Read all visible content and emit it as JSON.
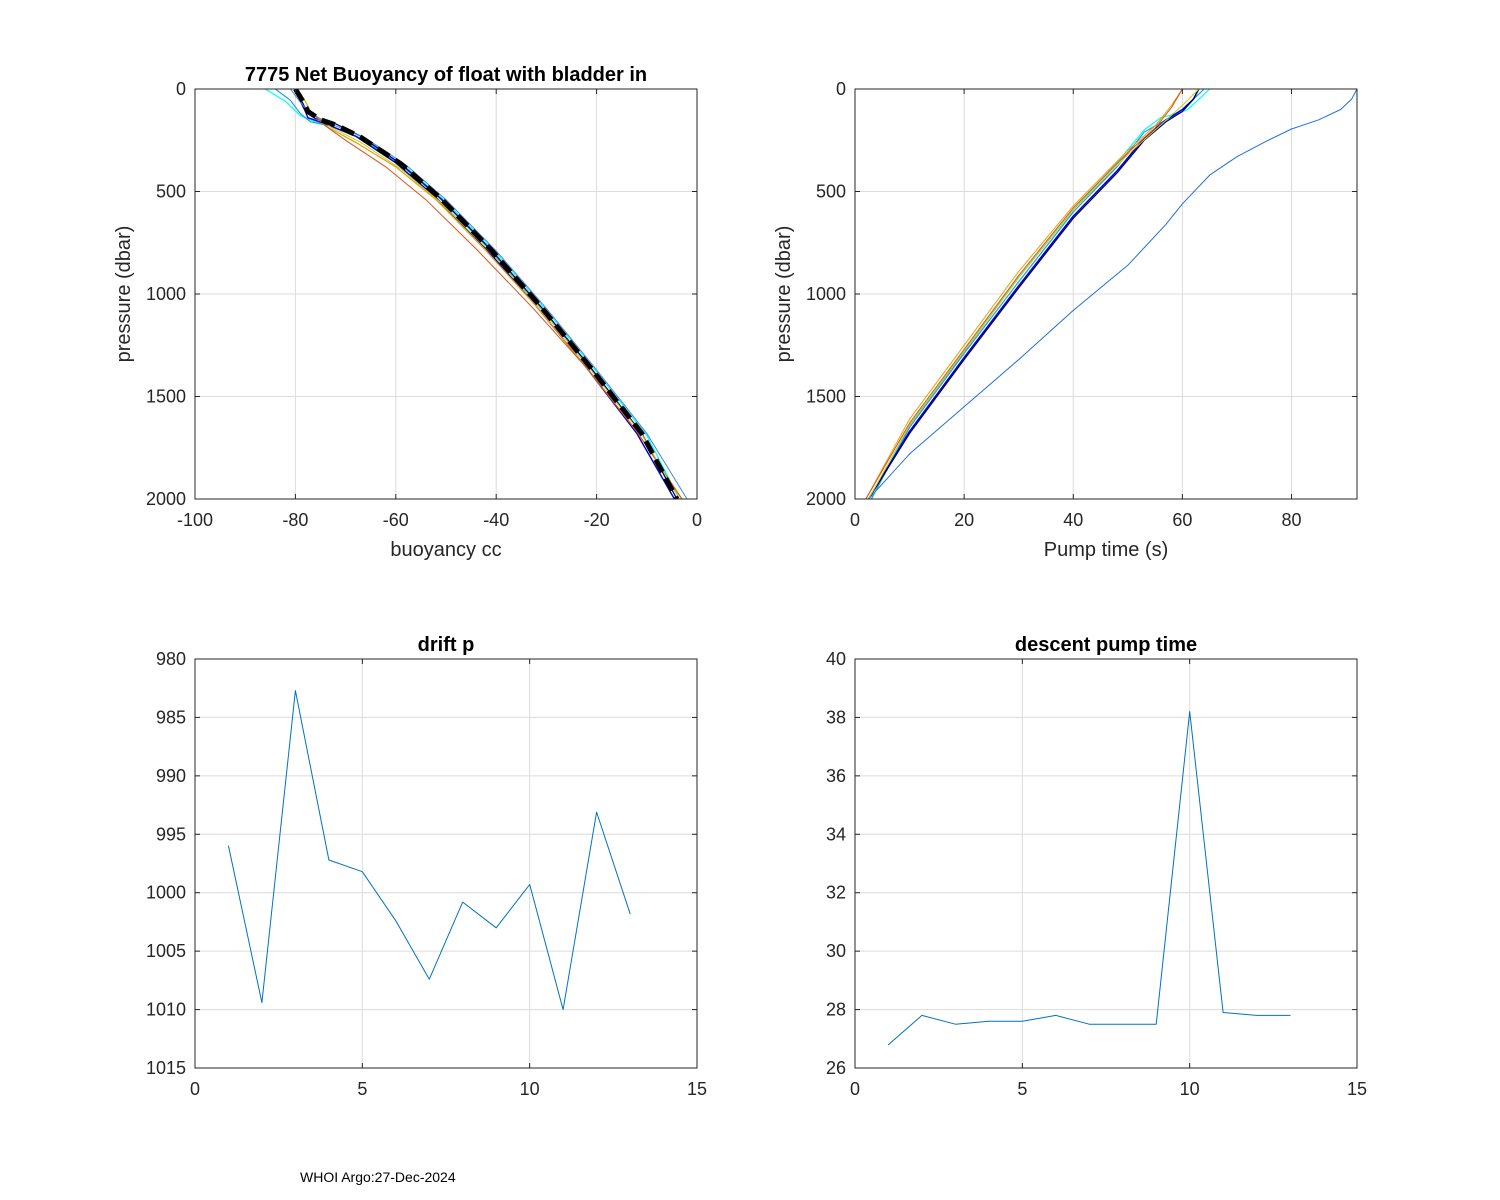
{
  "footer": "WHOI Argo:27-Dec-2024",
  "chart_data": [
    {
      "type": "line",
      "title": "7775 Net Buoyancy of float with bladder in",
      "xlabel": "buoyancy cc",
      "ylabel": "pressure (dbar)",
      "xlim": [
        -100,
        0
      ],
      "ylim": [
        0,
        2000
      ],
      "y_reversed": true,
      "xticks": [
        -100,
        -80,
        -60,
        -40,
        -20,
        0
      ],
      "yticks": [
        0,
        500,
        1000,
        1500,
        2000
      ],
      "grid": true,
      "series": [
        {
          "name": "profile 1",
          "color": "#00ffff",
          "width": 1.2,
          "x": [
            -86,
            -82,
            -79,
            -76,
            -72,
            -66,
            -58,
            -50,
            -40,
            -30,
            -20,
            -10,
            -3.5
          ],
          "y": [
            0,
            60,
            130,
            160,
            190,
            250,
            380,
            550,
            800,
            1080,
            1380,
            1690,
            2000
          ]
        },
        {
          "name": "profile 2",
          "color": "#1f9be6",
          "width": 1.2,
          "x": [
            -84,
            -81,
            -79,
            -77,
            -73,
            -67,
            -59,
            -51,
            -41,
            -31,
            -21,
            -11,
            -4
          ],
          "y": [
            0,
            55,
            120,
            160,
            180,
            240,
            370,
            540,
            790,
            1070,
            1370,
            1680,
            2000
          ]
        },
        {
          "name": "profile 3",
          "color": "#0000d0",
          "width": 1.4,
          "x": [
            -80,
            -79,
            -78,
            -77.5,
            -74,
            -68,
            -60,
            -52,
            -42,
            -32,
            -22,
            -12,
            -4.5
          ],
          "y": [
            0,
            60,
            110,
            140,
            170,
            230,
            360,
            530,
            780,
            1060,
            1360,
            1680,
            2000
          ]
        },
        {
          "name": "profile 4",
          "color": "#000060",
          "width": 1.2,
          "x": [
            -80,
            -78.5,
            -77.5,
            -76,
            -72,
            -67,
            -59,
            -51,
            -41,
            -31,
            -21,
            -11,
            -4
          ],
          "y": [
            0,
            70,
            120,
            145,
            170,
            230,
            365,
            535,
            785,
            1065,
            1365,
            1680,
            2000
          ]
        },
        {
          "name": "profile 5",
          "color": "#e8a000",
          "width": 1.2,
          "x": [
            -80,
            -78,
            -77,
            -74,
            -68,
            -60,
            -52,
            -42,
            -32,
            -22,
            -12,
            -3
          ],
          "y": [
            0,
            60,
            110,
            180,
            260,
            380,
            540,
            790,
            1060,
            1360,
            1670,
            2000
          ]
        },
        {
          "name": "profile 6",
          "color": "#d95319",
          "width": 1.0,
          "x": [
            -80,
            -78,
            -77,
            -74,
            -70,
            -62,
            -54,
            -44,
            -33,
            -22,
            -12,
            -3
          ],
          "y": [
            0,
            60,
            110,
            180,
            250,
            380,
            540,
            780,
            1060,
            1360,
            1670,
            2000
          ]
        },
        {
          "name": "profile 7",
          "color": "#c0d020",
          "width": 1.0,
          "x": [
            -80,
            -78,
            -77,
            -73,
            -67,
            -59,
            -51,
            -41,
            -31,
            -21,
            -11,
            -3.5
          ],
          "y": [
            0,
            60,
            110,
            185,
            260,
            390,
            555,
            800,
            1075,
            1375,
            1685,
            2000
          ]
        },
        {
          "name": "profile 8",
          "color": "#4b83d6",
          "width": 1.0,
          "x": [
            -81,
            -79,
            -77,
            -73,
            -66,
            -58,
            -50,
            -40,
            -30,
            -20,
            -10,
            -2
          ],
          "y": [
            0,
            65,
            120,
            170,
            240,
            370,
            540,
            790,
            1070,
            1370,
            1680,
            2000
          ]
        },
        {
          "name": "mean",
          "color": "#000000",
          "width": 5,
          "dashed": true,
          "x": [
            -80,
            -78.5,
            -77.5,
            -75,
            -72,
            -67,
            -59,
            -51,
            -41,
            -31,
            -21,
            -11,
            -4
          ],
          "y": [
            0,
            60,
            110,
            150,
            175,
            235,
            365,
            535,
            785,
            1065,
            1365,
            1680,
            2000
          ]
        }
      ]
    },
    {
      "type": "line",
      "title": "",
      "xlabel": "Pump time (s)",
      "ylabel": "pressure (dbar)",
      "xlim": [
        0,
        92
      ],
      "ylim": [
        0,
        2000
      ],
      "y_reversed": true,
      "xticks": [
        0,
        20,
        40,
        60,
        80
      ],
      "yticks": [
        0,
        500,
        1000,
        1500,
        2000
      ],
      "grid": true,
      "series": [
        {
          "name": "outlier",
          "color": "#1f6fe0",
          "width": 1.0,
          "x": [
            2.5,
            10,
            20,
            30,
            40,
            50,
            57,
            60,
            65,
            70,
            75,
            80,
            85,
            89,
            91,
            92
          ],
          "y": [
            2000,
            1780,
            1550,
            1320,
            1080,
            860,
            660,
            560,
            420,
            330,
            260,
            195,
            150,
            100,
            50,
            0
          ]
        },
        {
          "name": "profile 1",
          "color": "#00ffff",
          "width": 1.2,
          "x": [
            3,
            10,
            20,
            30,
            40,
            48,
            53,
            56,
            59,
            61,
            63,
            65
          ],
          "y": [
            2000,
            1640,
            1280,
            920,
            590,
            360,
            200,
            140,
            120,
            100,
            50,
            0
          ]
        },
        {
          "name": "profile 2",
          "color": "#1f9be6",
          "width": 1.2,
          "x": [
            3,
            10,
            20,
            30,
            40,
            48,
            53,
            57,
            60,
            62,
            64
          ],
          "y": [
            2000,
            1650,
            1290,
            940,
            600,
            380,
            210,
            150,
            110,
            50,
            0
          ]
        },
        {
          "name": "profile 3",
          "color": "#0000d0",
          "width": 1.5,
          "x": [
            2.5,
            10,
            20,
            30,
            40,
            48,
            53,
            57,
            60,
            62,
            63
          ],
          "y": [
            2000,
            1670,
            1310,
            960,
            620,
            400,
            240,
            150,
            100,
            50,
            0
          ]
        },
        {
          "name": "profile 4",
          "color": "#000060",
          "width": 1.2,
          "x": [
            2.5,
            10,
            20,
            30,
            40,
            48,
            53,
            57,
            60,
            62,
            63
          ],
          "y": [
            2000,
            1680,
            1320,
            970,
            630,
            410,
            250,
            160,
            110,
            50,
            0
          ]
        },
        {
          "name": "profile 5",
          "color": "#e8a000",
          "width": 1.0,
          "x": [
            2,
            10,
            20,
            30,
            40,
            50,
            55,
            58,
            60
          ],
          "y": [
            2000,
            1610,
            1250,
            890,
            570,
            300,
            180,
            80,
            0
          ]
        },
        {
          "name": "profile 6",
          "color": "#d95319",
          "width": 1.0,
          "x": [
            2,
            10,
            20,
            30,
            40,
            50,
            55,
            58,
            60
          ],
          "y": [
            2000,
            1630,
            1270,
            910,
            580,
            310,
            190,
            90,
            0
          ]
        },
        {
          "name": "profile 7",
          "color": "#c0d020",
          "width": 1.0,
          "x": [
            2.5,
            10,
            20,
            30,
            40,
            50,
            55,
            60,
            63
          ],
          "y": [
            2000,
            1640,
            1280,
            920,
            590,
            320,
            200,
            80,
            0
          ]
        }
      ]
    },
    {
      "type": "line",
      "title": "drift p",
      "xlabel": "",
      "ylabel": "",
      "xlim": [
        0,
        15
      ],
      "ylim": [
        980,
        1015
      ],
      "y_reversed": true,
      "xticks": [
        0,
        5,
        10,
        15
      ],
      "yticks": [
        980,
        985,
        990,
        995,
        1000,
        1005,
        1010,
        1015
      ],
      "grid": true,
      "series": [
        {
          "name": "drift p",
          "color": "#0072bd",
          "width": 1.0,
          "x": [
            1,
            2,
            3,
            4,
            5,
            6,
            7,
            8,
            9,
            10,
            11,
            12,
            13
          ],
          "y": [
            996.0,
            1009.4,
            982.7,
            997.2,
            998.2,
            1002.4,
            1007.4,
            1000.8,
            1003.0,
            999.3,
            1010.0,
            993.1,
            1001.8
          ]
        }
      ]
    },
    {
      "type": "line",
      "title": "descent pump time",
      "xlabel": "",
      "ylabel": "",
      "xlim": [
        0,
        15
      ],
      "ylim": [
        26,
        40
      ],
      "y_reversed": false,
      "xticks": [
        0,
        5,
        10,
        15
      ],
      "yticks": [
        26,
        28,
        30,
        32,
        34,
        36,
        38,
        40
      ],
      "grid": true,
      "series": [
        {
          "name": "descent pump time",
          "color": "#0072bd",
          "width": 1.0,
          "x": [
            1,
            2,
            3,
            4,
            5,
            6,
            7,
            8,
            9,
            10,
            11,
            12,
            13
          ],
          "y": [
            26.8,
            27.8,
            27.5,
            27.6,
            27.6,
            27.8,
            27.5,
            27.5,
            27.5,
            38.2,
            27.9,
            27.8,
            27.8
          ]
        }
      ]
    }
  ]
}
